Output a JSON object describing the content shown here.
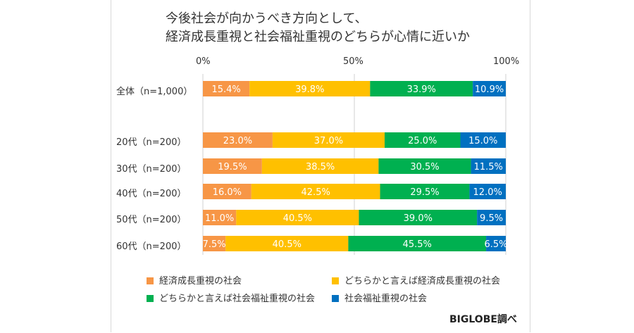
{
  "chart_data": {
    "type": "bar",
    "orientation": "horizontal-stacked-100",
    "title_line1": "今後社会が向かうべき方向として、",
    "title_line2": "経済成長重視と社会福祉重視のどちらが心情に近いか",
    "x_ticks": [
      "0%",
      "50%",
      "100%"
    ],
    "categories": [
      "全体（n=1,000）",
      "20代（n=200）",
      "30代（n=200）",
      "40代（n=200）",
      "50代（n=200）",
      "60代（n=200）"
    ],
    "series": [
      {
        "name": "経済成長重視の社会",
        "color": "#F79646",
        "values": [
          15.4,
          23.0,
          19.5,
          16.0,
          11.0,
          7.5
        ]
      },
      {
        "name": "どちらかと言えば経済成長重視の社会",
        "color": "#FFC000",
        "values": [
          39.8,
          37.0,
          38.5,
          42.5,
          40.5,
          40.5
        ]
      },
      {
        "name": "どちらかと言えば社会福祉重視の社会",
        "color": "#00B050",
        "values": [
          33.9,
          25.0,
          30.5,
          29.5,
          39.0,
          45.5
        ]
      },
      {
        "name": "社会福祉重視の社会",
        "color": "#0070C0",
        "values": [
          10.9,
          15.0,
          11.5,
          12.0,
          9.5,
          6.5
        ]
      }
    ],
    "value_labels": [
      [
        "15.4%",
        "39.8%",
        "33.9%",
        "10.9%"
      ],
      [
        "23.0%",
        "37.0%",
        "25.0%",
        "15.0%"
      ],
      [
        "19.5%",
        "38.5%",
        "30.5%",
        "11.5%"
      ],
      [
        "16.0%",
        "42.5%",
        "29.5%",
        "12.0%"
      ],
      [
        "11.0%",
        "40.5%",
        "39.0%",
        "9.5%"
      ],
      [
        "7.5%",
        "40.5%",
        "45.5%",
        "6.5%"
      ]
    ],
    "xlim": [
      0,
      100
    ],
    "grid": "vertical lines at 0%, 50%, 100%",
    "legend_placement": "bottom"
  },
  "credit": "BIGLOBE調べ"
}
